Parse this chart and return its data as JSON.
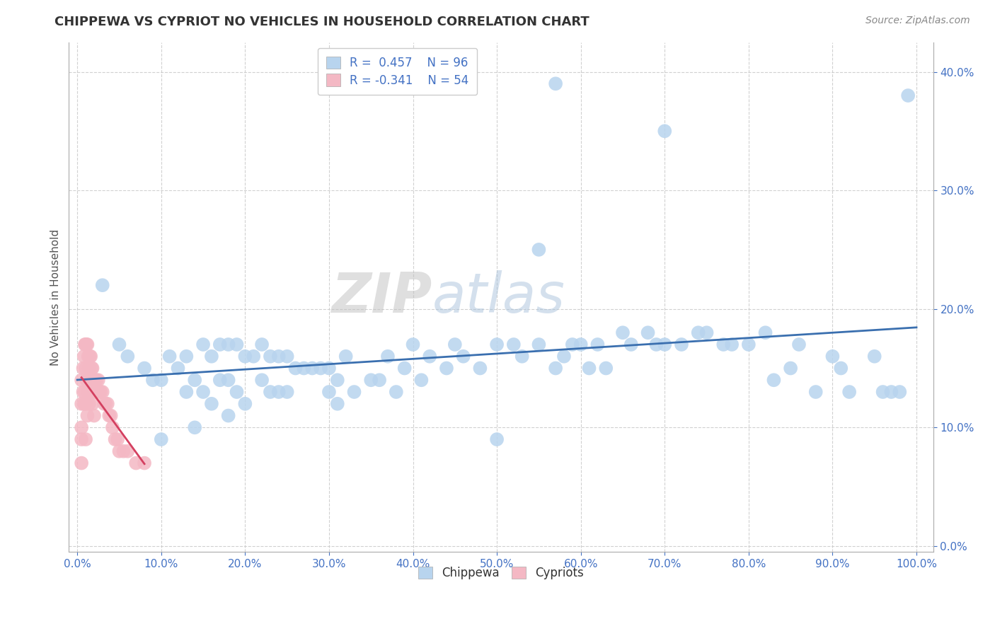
{
  "title": "CHIPPEWA VS CYPRIOT NO VEHICLES IN HOUSEHOLD CORRELATION CHART",
  "source_text": "Source: ZipAtlas.com",
  "ylabel": "No Vehicles in Household",
  "xlim": [
    -0.01,
    1.02
  ],
  "ylim": [
    -0.005,
    0.425
  ],
  "xtick_vals": [
    0.0,
    0.1,
    0.2,
    0.3,
    0.4,
    0.5,
    0.6,
    0.7,
    0.8,
    0.9,
    1.0
  ],
  "ytick_vals": [
    0.0,
    0.1,
    0.2,
    0.3,
    0.4
  ],
  "chippewa_color": "#b8d4ee",
  "cypriot_color": "#f4b8c4",
  "trend_chippewa_color": "#3a6faf",
  "trend_cypriot_color": "#d44060",
  "watermark_zip": "ZIP",
  "watermark_atlas": "atlas",
  "background_color": "#ffffff",
  "grid_color": "#cccccc",
  "legend_label_1": "R =  0.457    N = 96",
  "legend_label_2": "R = -0.341    N = 54",
  "chippewa_x": [
    0.03,
    0.05,
    0.06,
    0.08,
    0.09,
    0.1,
    0.1,
    0.11,
    0.12,
    0.13,
    0.13,
    0.14,
    0.14,
    0.15,
    0.15,
    0.16,
    0.16,
    0.17,
    0.17,
    0.18,
    0.18,
    0.18,
    0.19,
    0.19,
    0.2,
    0.2,
    0.21,
    0.22,
    0.22,
    0.23,
    0.23,
    0.24,
    0.24,
    0.25,
    0.25,
    0.26,
    0.27,
    0.28,
    0.29,
    0.3,
    0.3,
    0.31,
    0.31,
    0.32,
    0.33,
    0.35,
    0.36,
    0.37,
    0.38,
    0.39,
    0.4,
    0.41,
    0.42,
    0.44,
    0.45,
    0.46,
    0.48,
    0.5,
    0.5,
    0.52,
    0.53,
    0.55,
    0.57,
    0.58,
    0.59,
    0.6,
    0.61,
    0.62,
    0.63,
    0.65,
    0.66,
    0.68,
    0.69,
    0.7,
    0.72,
    0.74,
    0.75,
    0.77,
    0.78,
    0.8,
    0.82,
    0.83,
    0.85,
    0.86,
    0.88,
    0.9,
    0.91,
    0.92,
    0.95,
    0.96,
    0.97,
    0.98,
    0.55,
    0.7,
    0.57,
    0.99
  ],
  "chippewa_y": [
    0.22,
    0.17,
    0.16,
    0.15,
    0.14,
    0.14,
    0.09,
    0.16,
    0.15,
    0.16,
    0.13,
    0.14,
    0.1,
    0.17,
    0.13,
    0.16,
    0.12,
    0.17,
    0.14,
    0.17,
    0.14,
    0.11,
    0.17,
    0.13,
    0.16,
    0.12,
    0.16,
    0.17,
    0.14,
    0.16,
    0.13,
    0.16,
    0.13,
    0.16,
    0.13,
    0.15,
    0.15,
    0.15,
    0.15,
    0.15,
    0.13,
    0.14,
    0.12,
    0.16,
    0.13,
    0.14,
    0.14,
    0.16,
    0.13,
    0.15,
    0.17,
    0.14,
    0.16,
    0.15,
    0.17,
    0.16,
    0.15,
    0.17,
    0.09,
    0.17,
    0.16,
    0.17,
    0.15,
    0.16,
    0.17,
    0.17,
    0.15,
    0.17,
    0.15,
    0.18,
    0.17,
    0.18,
    0.17,
    0.17,
    0.17,
    0.18,
    0.18,
    0.17,
    0.17,
    0.17,
    0.18,
    0.14,
    0.15,
    0.17,
    0.13,
    0.16,
    0.15,
    0.13,
    0.16,
    0.13,
    0.13,
    0.13,
    0.25,
    0.35,
    0.39,
    0.38
  ],
  "cypriot_x": [
    0.005,
    0.005,
    0.005,
    0.005,
    0.005,
    0.007,
    0.007,
    0.008,
    0.008,
    0.009,
    0.009,
    0.01,
    0.01,
    0.01,
    0.01,
    0.011,
    0.011,
    0.012,
    0.012,
    0.012,
    0.013,
    0.013,
    0.014,
    0.014,
    0.015,
    0.015,
    0.016,
    0.016,
    0.017,
    0.018,
    0.018,
    0.019,
    0.02,
    0.02,
    0.021,
    0.022,
    0.023,
    0.025,
    0.026,
    0.028,
    0.03,
    0.032,
    0.034,
    0.036,
    0.038,
    0.04,
    0.042,
    0.045,
    0.048,
    0.05,
    0.055,
    0.06,
    0.07,
    0.08
  ],
  "cypriot_y": [
    0.14,
    0.12,
    0.1,
    0.09,
    0.07,
    0.15,
    0.13,
    0.16,
    0.12,
    0.17,
    0.13,
    0.17,
    0.15,
    0.12,
    0.09,
    0.17,
    0.14,
    0.17,
    0.14,
    0.11,
    0.16,
    0.13,
    0.15,
    0.12,
    0.16,
    0.13,
    0.16,
    0.13,
    0.15,
    0.15,
    0.12,
    0.14,
    0.14,
    0.11,
    0.14,
    0.13,
    0.14,
    0.14,
    0.13,
    0.13,
    0.13,
    0.12,
    0.12,
    0.12,
    0.11,
    0.11,
    0.1,
    0.09,
    0.09,
    0.08,
    0.08,
    0.08,
    0.07,
    0.07
  ]
}
